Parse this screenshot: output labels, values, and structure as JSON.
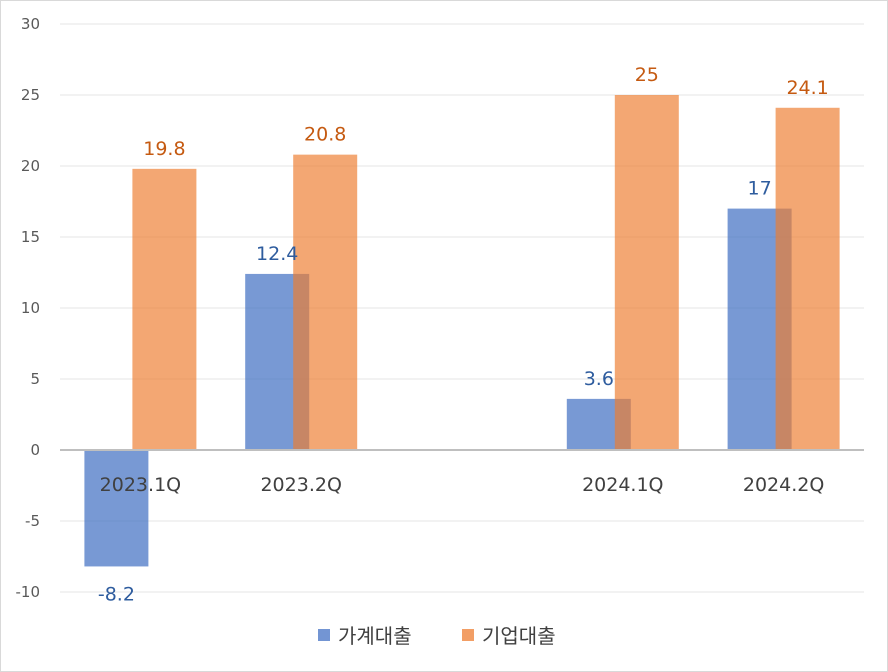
{
  "chart_data": {
    "type": "bar",
    "categories": [
      "2023.1Q",
      "2023.2Q",
      "",
      "2024.1Q",
      "2024.2Q"
    ],
    "series": [
      {
        "name": "가계대출",
        "values": [
          -8.2,
          12.4,
          null,
          3.6,
          17
        ],
        "color": "#4472C4",
        "label_color": "#2E5C9E"
      },
      {
        "name": "기업대출",
        "values": [
          19.8,
          20.8,
          null,
          25,
          24.1
        ],
        "color": "#ED7D31",
        "label_color": "#C55A11"
      }
    ],
    "data_labels": {
      "가계대출": [
        "-8.2",
        "12.4",
        "",
        "3.6",
        "17"
      ],
      "기업대출": [
        "19.8",
        "20.8",
        "",
        "25",
        "24.1"
      ]
    },
    "y_ticks": [
      "-10",
      "-5",
      "0",
      "5",
      "10",
      "15",
      "20",
      "25",
      "30"
    ],
    "ylim": [
      -10,
      30
    ],
    "grid": true,
    "legend_position": "bottom",
    "title": "",
    "xlabel": "",
    "ylabel": ""
  }
}
